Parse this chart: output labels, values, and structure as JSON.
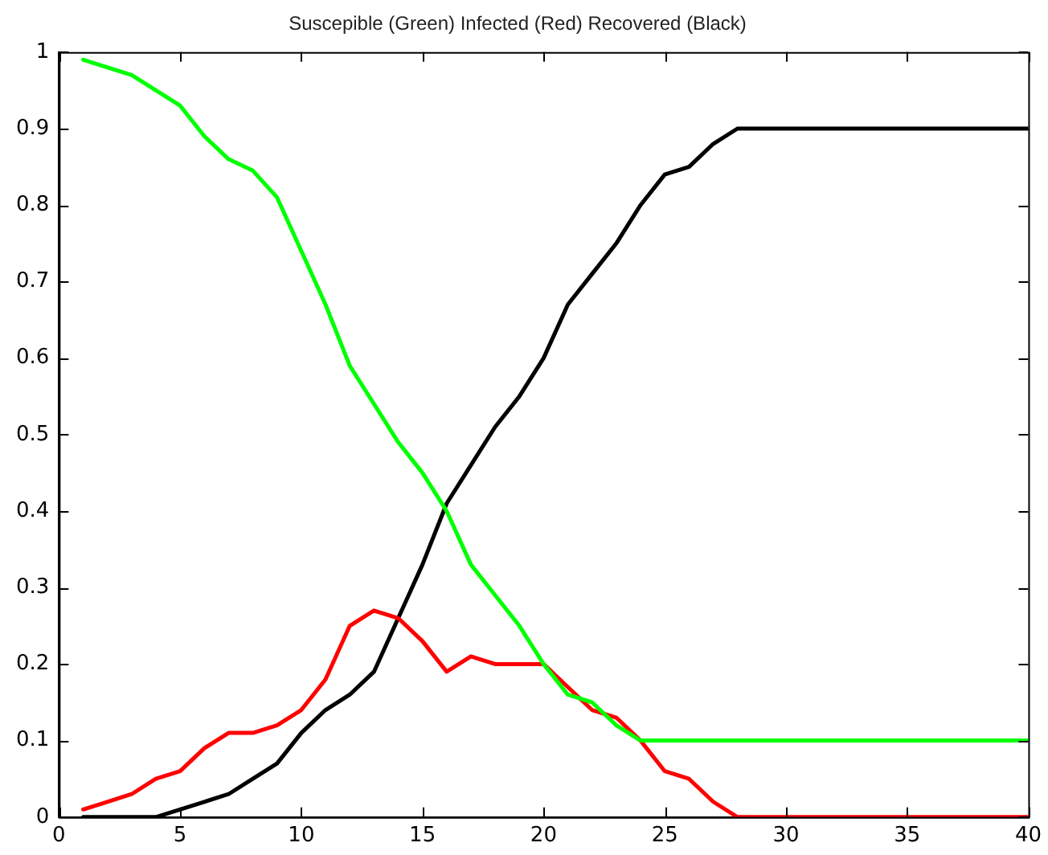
{
  "chart_data": {
    "type": "line",
    "title": "Suscepible (Green) Infected (Red) Recovered (Black)",
    "x": [
      1,
      2,
      3,
      4,
      5,
      6,
      7,
      8,
      9,
      10,
      11,
      12,
      13,
      14,
      15,
      16,
      17,
      18,
      19,
      20,
      21,
      22,
      23,
      24,
      25,
      26,
      27,
      28,
      29,
      30,
      31,
      32,
      33,
      34,
      35,
      36,
      37,
      38,
      39,
      40
    ],
    "series": [
      {
        "color": "#00ff00",
        "values": [
          0.99,
          0.98,
          0.97,
          0.95,
          0.93,
          0.89,
          0.86,
          0.845,
          0.81,
          0.74,
          0.67,
          0.59,
          0.54,
          0.49,
          0.45,
          0.4,
          0.33,
          0.29,
          0.25,
          0.2,
          0.16,
          0.15,
          0.12,
          0.1,
          0.1,
          0.1,
          0.1,
          0.1,
          0.1,
          0.1,
          0.1,
          0.1,
          0.1,
          0.1,
          0.1,
          0.1,
          0.1,
          0.1,
          0.1,
          0.1
        ]
      },
      {
        "color": "#ff0000",
        "values": [
          0.01,
          0.02,
          0.03,
          0.05,
          0.06,
          0.09,
          0.11,
          0.11,
          0.12,
          0.14,
          0.18,
          0.25,
          0.27,
          0.26,
          0.23,
          0.19,
          0.21,
          0.2,
          0.2,
          0.2,
          0.17,
          0.14,
          0.13,
          0.1,
          0.06,
          0.05,
          0.02,
          0,
          0,
          0,
          0,
          0,
          0,
          0,
          0,
          0,
          0,
          0,
          0,
          0
        ]
      },
      {
        "color": "#000000",
        "values": [
          0,
          0,
          0,
          0,
          0.01,
          0.02,
          0.03,
          0.05,
          0.07,
          0.11,
          0.14,
          0.16,
          0.19,
          0.26,
          0.33,
          0.41,
          0.46,
          0.51,
          0.55,
          0.6,
          0.67,
          0.71,
          0.75,
          0.8,
          0.84,
          0.85,
          0.88,
          0.9,
          0.9,
          0.9,
          0.9,
          0.9,
          0.9,
          0.9,
          0.9,
          0.9,
          0.9,
          0.9,
          0.9,
          0.9
        ]
      }
    ],
    "xlim": [
      0,
      40
    ],
    "xticks": [
      0,
      5,
      10,
      15,
      20,
      25,
      30,
      35,
      40
    ],
    "ylim": [
      0,
      1
    ],
    "yticks": [
      0,
      0.1,
      0.2,
      0.3,
      0.4,
      0.5,
      0.6,
      0.7,
      0.8,
      0.9,
      1
    ],
    "grid": false,
    "legend": false,
    "marker": "none",
    "line_style": "solid"
  }
}
